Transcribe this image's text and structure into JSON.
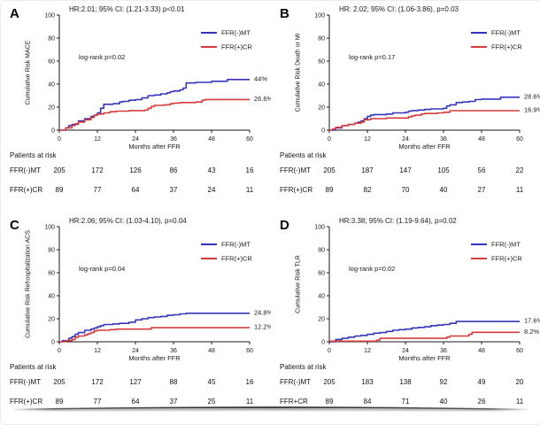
{
  "figure": {
    "xlabel": "Months after FFR",
    "x_ticks": [
      0,
      12,
      24,
      36,
      48,
      60
    ],
    "y_ticks": [
      0,
      20,
      40,
      60,
      80,
      100
    ],
    "legend": [
      {
        "label": "FFR(-)MT",
        "color": "#3535bb"
      },
      {
        "label": "FFR(+)CR",
        "color": "#d63b3b"
      }
    ],
    "axis_color": "#1a1a1a",
    "risk_header": "Patients at risk"
  },
  "chart_data": [
    {
      "type": "line",
      "panel": "A",
      "title": "HR:2.01; 95% CI: (1.21-3.33) p<0.01",
      "ylabel": "Cumulative Risk MACE",
      "logrank": "log-rank p=0.02",
      "xlabel": "Months after FFR",
      "xlim": [
        0,
        60
      ],
      "ylim": [
        0,
        100
      ],
      "series": [
        {
          "name": "FFR(-)MT",
          "color": "#3535bb",
          "end_label": "44%",
          "points": [
            [
              0,
              0
            ],
            [
              2,
              2
            ],
            [
              3,
              4
            ],
            [
              4,
              5
            ],
            [
              6,
              8
            ],
            [
              8,
              10
            ],
            [
              10,
              12
            ],
            [
              11,
              13
            ],
            [
              12,
              15
            ],
            [
              13,
              19
            ],
            [
              14,
              22.5
            ],
            [
              17,
              23
            ],
            [
              19,
              24.5
            ],
            [
              20,
              25
            ],
            [
              22,
              26
            ],
            [
              24,
              26.5
            ],
            [
              26,
              28
            ],
            [
              28,
              30
            ],
            [
              30,
              30.5
            ],
            [
              32,
              31.5
            ],
            [
              34,
              32.5
            ],
            [
              35,
              33.5
            ],
            [
              36,
              34
            ],
            [
              38,
              35
            ],
            [
              39,
              36.5
            ],
            [
              40,
              41
            ],
            [
              43,
              41.5
            ],
            [
              48,
              42.5
            ],
            [
              53,
              44
            ],
            [
              60,
              44
            ]
          ]
        },
        {
          "name": "FFR(+)CR",
          "color": "#d63b3b",
          "end_label": "26.6%",
          "points": [
            [
              0,
              0
            ],
            [
              2,
              2
            ],
            [
              4,
              4
            ],
            [
              5,
              5.5
            ],
            [
              6,
              7
            ],
            [
              8,
              9
            ],
            [
              10,
              11
            ],
            [
              11,
              13
            ],
            [
              12,
              14
            ],
            [
              14,
              15
            ],
            [
              16,
              16
            ],
            [
              18,
              16.5
            ],
            [
              22,
              17
            ],
            [
              27,
              17.5
            ],
            [
              28,
              19
            ],
            [
              29,
              20.5
            ],
            [
              30,
              21.5
            ],
            [
              33,
              22
            ],
            [
              35,
              23
            ],
            [
              36,
              23.5
            ],
            [
              38,
              24
            ],
            [
              43,
              24.5
            ],
            [
              45,
              26
            ],
            [
              46,
              26.6
            ],
            [
              60,
              26.6
            ]
          ]
        }
      ],
      "risk_table": {
        "header": "Patients at risk",
        "rows": [
          {
            "label": "FFR(-)MT",
            "values": [
              "205",
              "172",
              "126",
              "86",
              "43",
              "16"
            ]
          },
          {
            "label": "FFR(+)CR",
            "values": [
              "89",
              "77",
              "64",
              "37",
              "24",
              "11"
            ]
          }
        ]
      }
    },
    {
      "type": "line",
      "panel": "B",
      "title": "HR: 2.02; 95% CI: (1.06-3.86), p=0.03",
      "ylabel": "Cumulative Risk Death or MI",
      "logrank": "log-rank p=0.17",
      "xlabel": "Months after FFR",
      "xlim": [
        0,
        60
      ],
      "ylim": [
        0,
        100
      ],
      "series": [
        {
          "name": "FFR(-)MT",
          "color": "#3535bb",
          "end_label": "28.6%",
          "points": [
            [
              0,
              0
            ],
            [
              2,
              2
            ],
            [
              4,
              4
            ],
            [
              6,
              5
            ],
            [
              8,
              6
            ],
            [
              9,
              7
            ],
            [
              10,
              8
            ],
            [
              11,
              10
            ],
            [
              12,
              12
            ],
            [
              13,
              13
            ],
            [
              14,
              13.5
            ],
            [
              18,
              14
            ],
            [
              20,
              15
            ],
            [
              24,
              15.5
            ],
            [
              25,
              16.5
            ],
            [
              26,
              17
            ],
            [
              28,
              17.5
            ],
            [
              30,
              18
            ],
            [
              32,
              18.5
            ],
            [
              36,
              19
            ],
            [
              37,
              21
            ],
            [
              38,
              22
            ],
            [
              40,
              24
            ],
            [
              42,
              24.5
            ],
            [
              44,
              25
            ],
            [
              46,
              26.5
            ],
            [
              48,
              27
            ],
            [
              53,
              27
            ],
            [
              54,
              28.6
            ],
            [
              60,
              28.6
            ]
          ]
        },
        {
          "name": "FFR(+)CR",
          "color": "#d63b3b",
          "end_label": "16.9%",
          "points": [
            [
              0,
              0
            ],
            [
              1,
              1
            ],
            [
              2,
              2.5
            ],
            [
              4,
              4
            ],
            [
              6,
              5
            ],
            [
              8,
              6
            ],
            [
              10,
              7
            ],
            [
              11,
              9
            ],
            [
              13,
              10
            ],
            [
              18,
              10.5
            ],
            [
              24,
              10.5
            ],
            [
              25,
              11.5
            ],
            [
              26,
              12.5
            ],
            [
              27,
              13
            ],
            [
              29,
              14
            ],
            [
              30,
              14.5
            ],
            [
              34,
              15
            ],
            [
              36,
              15.5
            ],
            [
              38,
              16.9
            ],
            [
              60,
              16.9
            ]
          ]
        }
      ],
      "risk_table": {
        "header": "Patients at risk",
        "rows": [
          {
            "label": "FFR(-)MT",
            "values": [
              "205",
              "187",
              "147",
              "105",
              "56",
              "22"
            ]
          },
          {
            "label": "FFR(+)CR",
            "values": [
              "89",
              "82",
              "70",
              "40",
              "27",
              "11"
            ]
          }
        ]
      }
    },
    {
      "type": "line",
      "panel": "C",
      "title": "HR:2.06; 95% CI: (1.03-4.10), p=0.04",
      "ylabel": "Cumulative Risk Rehospitalization ACS",
      "logrank": "log-rank p=0.04",
      "xlabel": "Months after FFR",
      "xlim": [
        0,
        60
      ],
      "ylim": [
        0,
        100
      ],
      "series": [
        {
          "name": "FFR(-)MT",
          "color": "#3535bb",
          "end_label": "24.8%",
          "points": [
            [
              0,
              0
            ],
            [
              1,
              1
            ],
            [
              3,
              3
            ],
            [
              4,
              4.5
            ],
            [
              5,
              6.5
            ],
            [
              6,
              8
            ],
            [
              8,
              10
            ],
            [
              10,
              11
            ],
            [
              11,
              12
            ],
            [
              12,
              13
            ],
            [
              13,
              14
            ],
            [
              14,
              15
            ],
            [
              17,
              15.5
            ],
            [
              19,
              16
            ],
            [
              22,
              17
            ],
            [
              24,
              19
            ],
            [
              26,
              20
            ],
            [
              28,
              21
            ],
            [
              30,
              21.5
            ],
            [
              32,
              22
            ],
            [
              34,
              23
            ],
            [
              36,
              23.5
            ],
            [
              38,
              24.2
            ],
            [
              40,
              24.8
            ],
            [
              60,
              24.8
            ]
          ]
        },
        {
          "name": "FFR(+)CR",
          "color": "#d63b3b",
          "end_label": "12.2%",
          "points": [
            [
              0,
              0
            ],
            [
              2,
              1
            ],
            [
              4,
              2
            ],
            [
              5,
              4
            ],
            [
              6,
              5
            ],
            [
              8,
              6
            ],
            [
              9,
              7
            ],
            [
              10,
              8
            ],
            [
              11,
              9.5
            ],
            [
              12,
              10
            ],
            [
              16,
              10.5
            ],
            [
              18,
              11
            ],
            [
              28,
              11
            ],
            [
              29,
              12.2
            ],
            [
              60,
              12.2
            ]
          ]
        }
      ],
      "risk_table": {
        "header": "Patients at risk",
        "rows": [
          {
            "label": "FFR(-)MT",
            "values": [
              "205",
              "172",
              "127",
              "88",
              "45",
              "16"
            ]
          },
          {
            "label": "FFR(+)CR",
            "values": [
              "89",
              "77",
              "64",
              "37",
              "25",
              "11"
            ]
          }
        ]
      }
    },
    {
      "type": "line",
      "panel": "D",
      "title": "HR:3.38; 95% CI: (1.19-9.64), p=0.02",
      "ylabel": "Cumulative Risk TLR",
      "logrank": "log-rank p=0.02",
      "xlabel": "Months after FFR",
      "xlim": [
        0,
        60
      ],
      "ylim": [
        0,
        100
      ],
      "series": [
        {
          "name": "FFR(-)MT",
          "color": "#3535bb",
          "end_label": "17.6%",
          "points": [
            [
              0,
              0
            ],
            [
              2,
              2
            ],
            [
              4,
              3
            ],
            [
              6,
              4
            ],
            [
              8,
              5
            ],
            [
              10,
              5.5
            ],
            [
              12,
              6.5
            ],
            [
              14,
              7.5
            ],
            [
              16,
              8
            ],
            [
              18,
              9
            ],
            [
              20,
              10
            ],
            [
              22,
              10.5
            ],
            [
              24,
              11
            ],
            [
              26,
              12
            ],
            [
              28,
              12.5
            ],
            [
              30,
              13
            ],
            [
              32,
              14
            ],
            [
              34,
              14.5
            ],
            [
              36,
              15
            ],
            [
              38,
              16
            ],
            [
              40,
              17.6
            ],
            [
              60,
              17.6
            ]
          ]
        },
        {
          "name": "FFR(+)CR",
          "color": "#d63b3b",
          "end_label": "8.2%",
          "points": [
            [
              0,
              0.5
            ],
            [
              14,
              0.5
            ],
            [
              15,
              1.5
            ],
            [
              16,
              3
            ],
            [
              36,
              3
            ],
            [
              37,
              4
            ],
            [
              38,
              5
            ],
            [
              43,
              5
            ],
            [
              44,
              6.5
            ],
            [
              45,
              8.2
            ],
            [
              60,
              8.2
            ]
          ]
        }
      ],
      "risk_table": {
        "header": "Patients at risk",
        "rows": [
          {
            "label": "FFR(-)MT",
            "values": [
              "205",
              "183",
              "138",
              "92",
              "49",
              "20"
            ]
          },
          {
            "label": "FFR+CR",
            "values": [
              "89",
              "84",
              "71",
              "40",
              "26",
              "11"
            ]
          }
        ]
      }
    }
  ]
}
